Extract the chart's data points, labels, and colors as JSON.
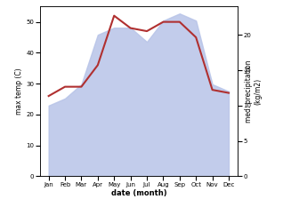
{
  "months": [
    "Jan",
    "Feb",
    "Mar",
    "Apr",
    "May",
    "Jun",
    "Jul",
    "Aug",
    "Sep",
    "Oct",
    "Nov",
    "Dec"
  ],
  "temp": [
    26,
    29,
    29,
    36,
    52,
    48,
    47,
    50,
    50,
    45,
    28,
    27
  ],
  "precip": [
    10,
    11,
    13,
    20,
    21,
    21,
    19,
    22,
    23,
    22,
    13,
    12
  ],
  "temp_color": "#b03030",
  "precip_fill_color": "#b8c4e8",
  "title": "",
  "xlabel": "date (month)",
  "ylabel_left": "max temp (C)",
  "ylabel_right": "med. precipitation\n(kg/m2)",
  "ylim_left": [
    0,
    55
  ],
  "ylim_right": [
    0,
    24
  ],
  "yticks_left": [
    0,
    10,
    20,
    30,
    40,
    50
  ],
  "yticks_right": [
    0,
    5,
    10,
    15,
    20
  ],
  "background_color": "#ffffff",
  "line_width": 1.5
}
